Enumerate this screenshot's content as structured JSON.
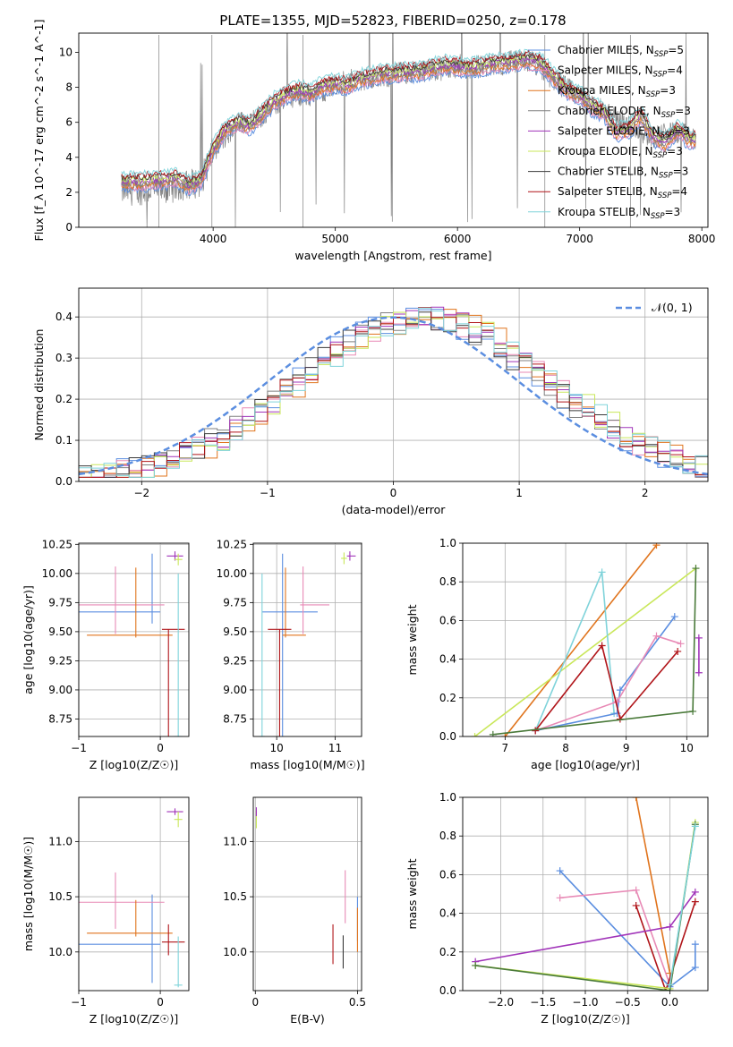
{
  "figure_title": "PLATE=1355, MJD=52823, FIBERID=0250, z=0.178",
  "colors": {
    "chabrier_miles": "#5b8ee0",
    "salpeter_miles": "#e88ab6",
    "kroupa_miles": "#e0741d",
    "chabrier_elodie": "#808080",
    "salpeter_elodie": "#a033b9",
    "kroupa_elodie": "#c9e75a",
    "chabrier_stelib": "#3a3a3a",
    "salpeter_stelib": "#b01419",
    "kroupa_stelib": "#7fd3da",
    "gauss": "#5b8ee0",
    "stelib_dark_green": "#4a7a3a",
    "grid": "#b0b0b0"
  },
  "chart_data": [
    {
      "id": "spectrum",
      "type": "line",
      "xlabel": "wavelength [Angstrom, rest frame]",
      "ylabel": "Flux [f_λ 10^-17 erg cm^-2 s^-1 A^-1]",
      "xlim": [
        2900,
        8050
      ],
      "ylim": [
        0,
        11.1
      ],
      "xticks": [
        4000,
        5000,
        6000,
        7000,
        8000
      ],
      "yticks": [
        0,
        2,
        4,
        6,
        8,
        10
      ],
      "grid": false,
      "legend_position": "right",
      "legend": [
        {
          "label": "Chabrier MILES, N",
          "sub": "SSP",
          "suffix": "=5",
          "color": "#5b8ee0"
        },
        {
          "label": "Salpeter MILES, N",
          "sub": "SSP",
          "suffix": "=4",
          "color": "#e88ab6"
        },
        {
          "label": "Kroupa MILES, N",
          "sub": "SSP",
          "suffix": "=3",
          "color": "#e0741d"
        },
        {
          "label": "Chabrier ELODIE, N",
          "sub": "SSP",
          "suffix": "=3",
          "color": "#808080"
        },
        {
          "label": "Salpeter ELODIE, N",
          "sub": "SSP",
          "suffix": "=3",
          "color": "#a033b9"
        },
        {
          "label": "Kroupa ELODIE, N",
          "sub": "SSP",
          "suffix": "=3",
          "color": "#c9e75a"
        },
        {
          "label": "Chabrier STELIB, N",
          "sub": "SSP",
          "suffix": "=3",
          "color": "#3a3a3a"
        },
        {
          "label": "Salpeter STELIB, N",
          "sub": "SSP",
          "suffix": "=4",
          "color": "#b01419"
        },
        {
          "label": "Kroupa STELIB, N",
          "sub": "SSP",
          "suffix": "=3",
          "color": "#7fd3da"
        }
      ],
      "model_continuum": [
        [
          3250,
          2.6
        ],
        [
          3400,
          2.6
        ],
        [
          3550,
          2.7
        ],
        [
          3700,
          2.8
        ],
        [
          3800,
          2.4
        ],
        [
          3900,
          2.7
        ],
        [
          4000,
          4.5
        ],
        [
          4100,
          5.6
        ],
        [
          4200,
          6.0
        ],
        [
          4300,
          5.8
        ],
        [
          4400,
          6.5
        ],
        [
          4500,
          7.2
        ],
        [
          4600,
          7.6
        ],
        [
          4700,
          7.8
        ],
        [
          4800,
          7.7
        ],
        [
          4900,
          8.1
        ],
        [
          5000,
          8.2
        ],
        [
          5100,
          8.1
        ],
        [
          5200,
          8.5
        ],
        [
          5300,
          8.6
        ],
        [
          5400,
          8.8
        ],
        [
          5500,
          8.8
        ],
        [
          5600,
          8.9
        ],
        [
          5700,
          8.9
        ],
        [
          5800,
          9.1
        ],
        [
          5900,
          9.3
        ],
        [
          6000,
          9.2
        ],
        [
          6100,
          9.1
        ],
        [
          6200,
          9.2
        ],
        [
          6300,
          9.4
        ],
        [
          6400,
          9.4
        ],
        [
          6500,
          9.5
        ],
        [
          6600,
          9.6
        ],
        [
          6700,
          9.3
        ],
        [
          6800,
          8.5
        ],
        [
          6900,
          7.8
        ],
        [
          7000,
          7.6
        ],
        [
          7100,
          6.9
        ],
        [
          7200,
          6.6
        ],
        [
          7300,
          5.4
        ],
        [
          7400,
          5.6
        ],
        [
          7500,
          6.4
        ],
        [
          7600,
          5.2
        ],
        [
          7700,
          4.8
        ],
        [
          7800,
          5.6
        ],
        [
          7900,
          5.0
        ]
      ],
      "data_spectrum": [
        [
          3250,
          2.1
        ],
        [
          3600,
          2.2
        ],
        [
          3900,
          2.6
        ],
        [
          4000,
          4.4
        ],
        [
          4200,
          5.9
        ],
        [
          4400,
          6.4
        ],
        [
          4600,
          7.5
        ],
        [
          4800,
          7.6
        ],
        [
          5000,
          8.1
        ],
        [
          5200,
          8.5
        ],
        [
          5400,
          8.6
        ],
        [
          5600,
          8.9
        ],
        [
          5800,
          9.0
        ],
        [
          6000,
          9.2
        ],
        [
          6200,
          9.2
        ],
        [
          6400,
          9.4
        ],
        [
          6600,
          9.5
        ],
        [
          6800,
          8.4
        ],
        [
          7000,
          7.4
        ],
        [
          7200,
          6.6
        ],
        [
          7400,
          5.8
        ],
        [
          7600,
          5.2
        ],
        [
          7800,
          5.4
        ],
        [
          7950,
          5.0
        ]
      ]
    },
    {
      "id": "residuals",
      "type": "line",
      "xlabel": "(data-model)/error",
      "ylabel": "Normed distribution",
      "xlim": [
        -2.5,
        2.5
      ],
      "ylim": [
        0,
        0.47
      ],
      "xticks": [
        -2,
        -1,
        0,
        1,
        2
      ],
      "yticks": [
        0.0,
        0.1,
        0.2,
        0.3,
        0.4
      ],
      "grid": true,
      "legend_position": "top-right",
      "legend": [
        {
          "label": "𝒩(0, 1)",
          "style": "dashed",
          "color": "#5b8ee0"
        }
      ],
      "gaussian": {
        "mean": 0,
        "sigma": 1
      }
    },
    {
      "id": "age_vs_Z",
      "type": "scatter",
      "xlabel": "Z [log10(Z/Z☉)]",
      "ylabel": "age [log10(age/yr)]",
      "xlim": [
        -1.0,
        0.35
      ],
      "ylim": [
        8.6,
        10.26
      ],
      "xticks": [
        -1,
        0
      ],
      "yticks": [
        8.75,
        9.0,
        9.25,
        9.5,
        9.75,
        10.0,
        10.25
      ],
      "grid": true,
      "points": [
        {
          "x": -0.1,
          "y": 9.67,
          "xerr": [
            0.9,
            0.1
          ],
          "yerr": [
            0.1,
            0.5
          ],
          "color": "#5b8ee0"
        },
        {
          "x": -0.55,
          "y": 9.73,
          "xerr": [
            0.45,
            0.6
          ],
          "yerr": [
            0.25,
            0.33
          ],
          "color": "#e88ab6"
        },
        {
          "x": -0.3,
          "y": 9.47,
          "xerr": [
            0.6,
            0.45
          ],
          "yerr": [
            0.02,
            0.58
          ],
          "color": "#e0741d"
        },
        {
          "x": 0.1,
          "y": 9.52,
          "xerr": [
            0.08,
            0.2
          ],
          "yerr": [
            0.92,
            0.0
          ],
          "color": "#b01419"
        },
        {
          "x": 0.22,
          "y": 8.6,
          "xerr": [
            0.05,
            0.05
          ],
          "yerr": [
            0,
            1.4
          ],
          "color": "#7fd3da"
        },
        {
          "x": 0.18,
          "y": 10.15,
          "xerr": [
            0.1,
            0.1
          ],
          "yerr": [
            0.04,
            0.04
          ],
          "color": "#a033b9"
        },
        {
          "x": 0.22,
          "y": 10.12,
          "xerr": [
            0.05,
            0.05
          ],
          "yerr": [
            0.05,
            0.05
          ],
          "color": "#c9e75a"
        }
      ]
    },
    {
      "id": "age_vs_mass",
      "type": "scatter",
      "xlabel": "mass [log10(M/M☉)]",
      "ylabel": "",
      "xlim": [
        9.6,
        11.45
      ],
      "ylim": [
        8.6,
        10.26
      ],
      "xticks": [
        10,
        11
      ],
      "yticks": [
        8.75,
        9.0,
        9.25,
        9.5,
        9.75,
        10.0,
        10.25
      ],
      "grid": true,
      "points": [
        {
          "x": 10.1,
          "y": 9.67,
          "xerr": [
            0.35,
            0.6
          ],
          "yerr": [
            1.07,
            0.5
          ],
          "color": "#5b8ee0"
        },
        {
          "x": 10.45,
          "y": 9.73,
          "xerr": [
            0.05,
            0.45
          ],
          "yerr": [
            0.25,
            0.33
          ],
          "color": "#e88ab6"
        },
        {
          "x": 10.15,
          "y": 9.47,
          "xerr": [
            0.05,
            0.35
          ],
          "yerr": [
            0.02,
            0.58
          ],
          "color": "#e0741d"
        },
        {
          "x": 10.05,
          "y": 9.52,
          "xerr": [
            0.2,
            0.2
          ],
          "yerr": [
            0.92,
            0.0
          ],
          "color": "#b01419"
        },
        {
          "x": 9.75,
          "y": 8.6,
          "xerr": [
            0.05,
            0.05
          ],
          "yerr": [
            0,
            1.4
          ],
          "color": "#7fd3da"
        },
        {
          "x": 11.25,
          "y": 10.15,
          "xerr": [
            0.05,
            0.1
          ],
          "yerr": [
            0.04,
            0.04
          ],
          "color": "#a033b9"
        },
        {
          "x": 11.15,
          "y": 10.13,
          "xerr": [
            0.05,
            0.05
          ],
          "yerr": [
            0.05,
            0.05
          ],
          "color": "#c9e75a"
        }
      ]
    },
    {
      "id": "mass_weight_vs_age",
      "type": "line",
      "xlabel": "age [log10(age/yr)]",
      "ylabel": "mass weight",
      "xlim": [
        6.3,
        10.35
      ],
      "ylim": [
        0,
        1.0
      ],
      "xticks": [
        7,
        8,
        9,
        10
      ],
      "yticks": [
        0.0,
        0.2,
        0.4,
        0.6,
        0.8,
        1.0
      ],
      "grid": true,
      "series": [
        {
          "color": "#e0741d",
          "points": [
            [
              7.0,
              0.0
            ],
            [
              9.5,
              0.99
            ]
          ]
        },
        {
          "color": "#c9e75a",
          "points": [
            [
              6.5,
              0.0
            ],
            [
              10.15,
              0.87
            ]
          ]
        },
        {
          "color": "#7fd3da",
          "points": [
            [
              7.5,
              0.03
            ],
            [
              8.6,
              0.85
            ],
            [
              8.8,
              0.12
            ]
          ]
        },
        {
          "color": "#5b8ee0",
          "points": [
            [
              7.5,
              0.03
            ],
            [
              8.85,
              0.12
            ],
            [
              8.9,
              0.24
            ],
            [
              9.8,
              0.62
            ]
          ]
        },
        {
          "color": "#e88ab6",
          "points": [
            [
              7.5,
              0.03
            ],
            [
              8.85,
              0.18
            ],
            [
              9.5,
              0.52
            ],
            [
              9.9,
              0.48
            ]
          ]
        },
        {
          "color": "#b01419",
          "points": [
            [
              7.5,
              0.03
            ],
            [
              8.6,
              0.47
            ],
            [
              8.9,
              0.09
            ],
            [
              9.85,
              0.44
            ]
          ]
        },
        {
          "color": "#4a7a3a",
          "points": [
            [
              6.8,
              0.01
            ],
            [
              10.1,
              0.13
            ],
            [
              10.15,
              0.87
            ]
          ]
        },
        {
          "color": "#a033b9",
          "points": [
            [
              10.2,
              0.33
            ],
            [
              10.2,
              0.51
            ]
          ]
        }
      ]
    },
    {
      "id": "mass_vs_Z",
      "type": "scatter",
      "xlabel": "Z [log10(Z/Z☉)]",
      "ylabel": "mass [log10(M/M☉)]",
      "xlim": [
        -1.0,
        0.35
      ],
      "ylim": [
        9.65,
        11.4
      ],
      "xticks": [
        -1,
        0
      ],
      "yticks": [
        10.0,
        10.5,
        11.0
      ],
      "grid": true,
      "points": [
        {
          "x": -0.1,
          "y": 10.07,
          "xerr": [
            0.9,
            0.1
          ],
          "yerr": [
            0.35,
            0.45
          ],
          "color": "#5b8ee0"
        },
        {
          "x": -0.55,
          "y": 10.45,
          "xerr": [
            0.45,
            0.6
          ],
          "yerr": [
            0.24,
            0.27
          ],
          "color": "#e88ab6"
        },
        {
          "x": -0.3,
          "y": 10.17,
          "xerr": [
            0.6,
            0.45
          ],
          "yerr": [
            0.03,
            0.3
          ],
          "color": "#e0741d"
        },
        {
          "x": 0.1,
          "y": 10.09,
          "xerr": [
            0.08,
            0.2
          ],
          "yerr": [
            0.12,
            0.16
          ],
          "color": "#b01419"
        },
        {
          "x": 0.22,
          "y": 9.7,
          "xerr": [
            0.05,
            0.05
          ],
          "yerr": [
            0.02,
            0.44
          ],
          "color": "#7fd3da"
        },
        {
          "x": 0.18,
          "y": 11.27,
          "xerr": [
            0.1,
            0.1
          ],
          "yerr": [
            0.03,
            0.03
          ],
          "color": "#a033b9"
        },
        {
          "x": 0.22,
          "y": 11.2,
          "xerr": [
            0.05,
            0.05
          ],
          "yerr": [
            0.07,
            0.07
          ],
          "color": "#c9e75a"
        }
      ]
    },
    {
      "id": "mass_vs_EBV",
      "type": "scatter",
      "xlabel": "E(B-V)",
      "ylabel": "",
      "xlim": [
        -0.01,
        0.52
      ],
      "ylim": [
        9.65,
        11.4
      ],
      "xticks": [
        0.0,
        0.5
      ],
      "yticks": [
        10.0,
        10.5,
        11.0
      ],
      "grid": true,
      "points": [
        {
          "x": 0.5,
          "y": 10.3,
          "yerr": [
            0.2,
            0.2
          ],
          "color": "#5b8ee0"
        },
        {
          "x": 0.44,
          "y": 10.5,
          "yerr": [
            0.24,
            0.24
          ],
          "color": "#e88ab6"
        },
        {
          "x": 0.5,
          "y": 10.2,
          "yerr": [
            0.2,
            0.2
          ],
          "color": "#e0741d"
        },
        {
          "x": 0.38,
          "y": 10.09,
          "yerr": [
            0.2,
            0.16
          ],
          "color": "#b01419"
        },
        {
          "x": 0.43,
          "y": 9.95,
          "yerr": [
            0.1,
            0.2
          ],
          "color": "#3a3a3a"
        },
        {
          "x": 0.005,
          "y": 11.2,
          "yerr": [
            0.08,
            0.08
          ],
          "color": "#c9e75a"
        },
        {
          "x": 0.005,
          "y": 11.27,
          "yerr": [
            0.04,
            0.04
          ],
          "color": "#a033b9"
        }
      ]
    },
    {
      "id": "mass_weight_vs_Z",
      "type": "line",
      "xlabel": "Z [log10(Z/Z☉)]",
      "ylabel": "mass weight",
      "xlim": [
        -2.45,
        0.45
      ],
      "ylim": [
        0,
        1.0
      ],
      "xticks": [
        -2.0,
        -1.5,
        -1.0,
        -0.5,
        0.0
      ],
      "xtick_labels": [
        "−2.0",
        "−1.5",
        "−1.0",
        "−0.5",
        "0.0"
      ],
      "yticks": [
        0.0,
        0.2,
        0.4,
        0.6,
        0.8,
        1.0
      ],
      "grid": true,
      "series": [
        {
          "color": "#5b8ee0",
          "points": [
            [
              -1.3,
              0.62
            ],
            [
              0.0,
              0.02
            ],
            [
              0.3,
              0.12
            ],
            [
              0.3,
              0.24
            ]
          ]
        },
        {
          "color": "#e88ab6",
          "points": [
            [
              -1.3,
              0.48
            ],
            [
              -0.4,
              0.52
            ],
            [
              0.0,
              0.03
            ]
          ]
        },
        {
          "color": "#e0741d",
          "points": [
            [
              -0.4,
              1.0
            ],
            [
              0.0,
              0.09
            ]
          ]
        },
        {
          "color": "#b01419",
          "points": [
            [
              -0.4,
              0.44
            ],
            [
              -0.05,
              0.0
            ],
            [
              0.3,
              0.46
            ]
          ]
        },
        {
          "color": "#a033b9",
          "points": [
            [
              -2.3,
              0.15
            ],
            [
              0.0,
              0.33
            ],
            [
              0.3,
              0.51
            ]
          ]
        },
        {
          "color": "#c9e75a",
          "points": [
            [
              -2.3,
              0.13
            ],
            [
              0.0,
              0.01
            ],
            [
              0.3,
              0.87
            ]
          ]
        },
        {
          "color": "#4a7a3a",
          "points": [
            [
              -2.3,
              0.13
            ],
            [
              0.0,
              0.0
            ],
            [
              0.3,
              0.86
            ]
          ]
        },
        {
          "color": "#7fd3da",
          "points": [
            [
              0.0,
              0.03
            ],
            [
              0.3,
              0.85
            ]
          ]
        }
      ]
    }
  ]
}
